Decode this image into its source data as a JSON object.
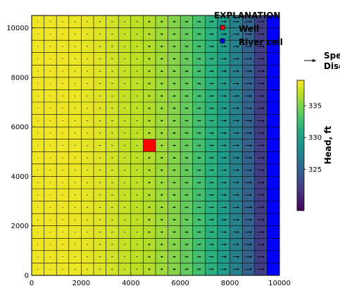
{
  "chart_data": {
    "type": "heatmap",
    "description": "",
    "x_axis": {
      "label": "",
      "range": [
        0,
        10000
      ],
      "ticks": [
        0,
        2000,
        4000,
        6000,
        8000,
        10000
      ]
    },
    "y_axis": {
      "label": "",
      "range": [
        0,
        10500
      ],
      "ticks": [
        0,
        2000,
        4000,
        6000,
        8000,
        10000
      ]
    },
    "grid": {
      "nrow": 21,
      "ncol": 20,
      "cell_size": 500,
      "ylim_top": 10500
    },
    "head_by_column": [
      338.55,
      338.53,
      338.48,
      338.39,
      338.24,
      338.0,
      337.62,
      337.2,
      336.95,
      336.6,
      336.0,
      335.2,
      334.1,
      332.9,
      331.4,
      329.6,
      327.4,
      325.0,
      322.2,
      318.5
    ],
    "colormap": "viridis",
    "color_range": [
      318.5,
      339.0
    ],
    "well": {
      "label": "Well",
      "row": 10,
      "col": 9,
      "color": "#ff0000"
    },
    "river_cells": {
      "label": "River cell",
      "col": 19,
      "color": "#0000ff"
    },
    "flow_arrows": {
      "label_line1": "Specific",
      "label_line2": "Discharge",
      "color": "#000000"
    },
    "legend": {
      "title": "EXPLANATION",
      "position": "top-right"
    },
    "colorbar": {
      "label": "Head, ft",
      "ticks": [
        325,
        330,
        335
      ],
      "range": [
        318.5,
        339.0
      ]
    }
  }
}
